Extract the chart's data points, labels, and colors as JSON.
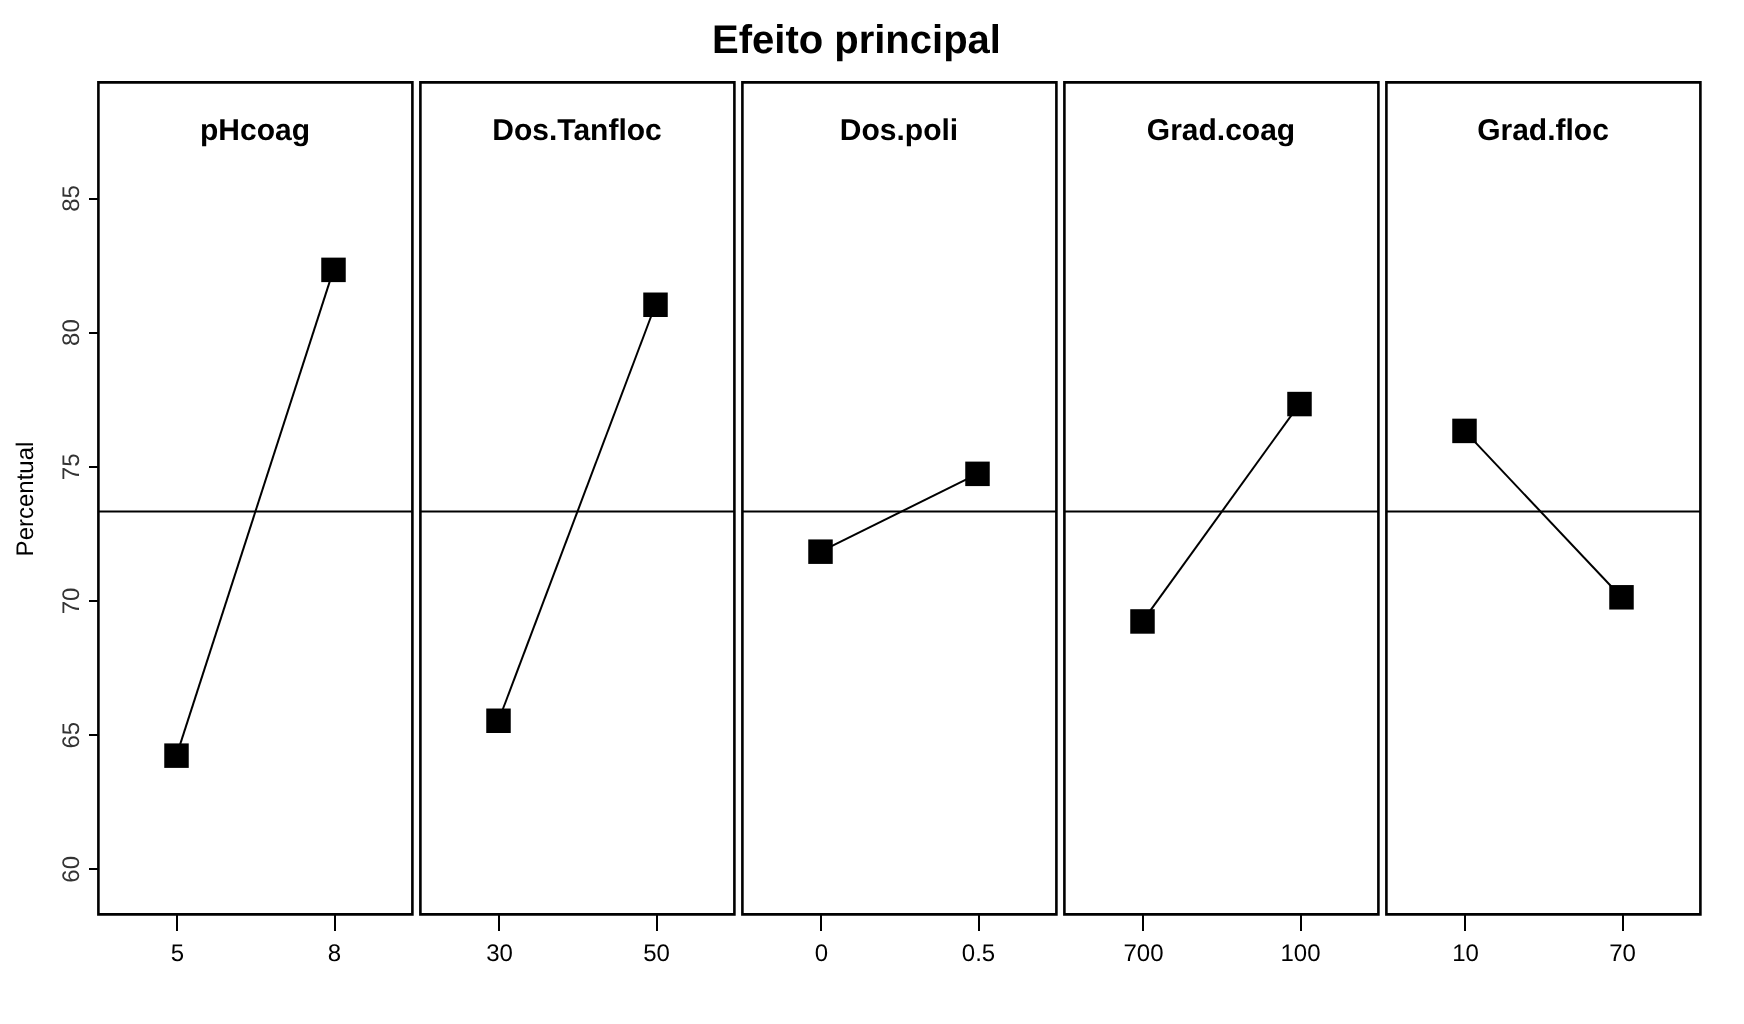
{
  "chart_data": [
    {
      "type": "line",
      "subtitle": "pHcoag",
      "ylabel": "Percentual",
      "categories": [
        "5",
        "8"
      ],
      "series": [
        {
          "color": "#000000",
          "values": [
            64.2,
            82.3
          ]
        }
      ],
      "ylim": [
        58.3,
        89.3
      ],
      "yticks": [
        60,
        65,
        70,
        75,
        80,
        85
      ],
      "ref_lines": [
        {
          "axis": "y",
          "value": 73.3,
          "color": "#000000"
        }
      ],
      "marker": "square",
      "line_style": "solid",
      "grid": false
    },
    {
      "type": "line",
      "subtitle": "Dos.Tanfloc",
      "categories": [
        "30",
        "50"
      ],
      "series": [
        {
          "color": "#000000",
          "values": [
            65.5,
            81.0
          ]
        }
      ],
      "ylim": [
        58.3,
        89.3
      ],
      "ref_lines": [
        {
          "axis": "y",
          "value": 73.3,
          "color": "#000000"
        }
      ],
      "marker": "square",
      "line_style": "solid",
      "grid": false,
      "tick_labels": "x"
    },
    {
      "type": "line",
      "title": "Efeito principal",
      "subtitle": "Dos.poli",
      "categories": [
        "0",
        "0.5"
      ],
      "series": [
        {
          "color": "#000000",
          "values": [
            71.8,
            74.7
          ]
        }
      ],
      "ylim": [
        58.3,
        89.3
      ],
      "ref_lines": [
        {
          "axis": "y",
          "value": 73.3,
          "color": "#000000"
        }
      ],
      "marker": "square",
      "line_style": "solid",
      "grid": false,
      "tick_labels": "x"
    },
    {
      "type": "line",
      "subtitle": "Grad.coag",
      "categories": [
        "700",
        "100"
      ],
      "series": [
        {
          "color": "#000000",
          "values": [
            69.2,
            77.3
          ]
        }
      ],
      "ylim": [
        58.3,
        89.3
      ],
      "ref_lines": [
        {
          "axis": "y",
          "value": 73.3,
          "color": "#000000"
        }
      ],
      "marker": "square",
      "line_style": "solid",
      "grid": false,
      "tick_labels": "x"
    },
    {
      "type": "line",
      "subtitle": "Grad.floc",
      "categories": [
        "10",
        "70"
      ],
      "series": [
        {
          "color": "#000000",
          "values": [
            76.3,
            70.1
          ]
        }
      ],
      "ylim": [
        58.3,
        89.3
      ],
      "ref_lines": [
        {
          "axis": "y",
          "value": 73.3,
          "color": "#000000"
        }
      ],
      "marker": "square",
      "line_style": "solid",
      "grid": false,
      "tick_labels": "x"
    }
  ]
}
